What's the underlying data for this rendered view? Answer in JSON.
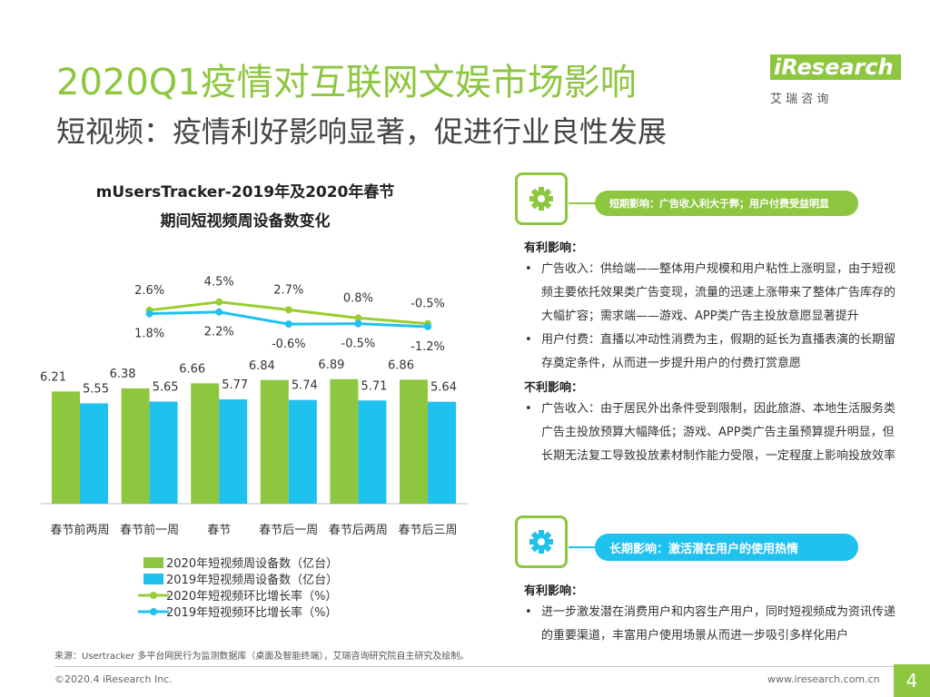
{
  "header": {
    "title": "2020Q1疫情对互联网文娱市场影响",
    "subtitle": "短视频：疫情利好影响显著，促进行业良性发展"
  },
  "logo": {
    "name": "iResearch",
    "tagline": "艾 瑞 咨 询"
  },
  "chart_data": {
    "type": "bar",
    "title": [
      "mUsersTracker-2019年及2020年春节",
      "期间短视频周设备数变化"
    ],
    "categories": [
      "春节前两周",
      "春节前一周",
      "春节",
      "春节后一周",
      "春节后两周",
      "春节后三周"
    ],
    "ylim": [
      0,
      12
    ],
    "y2lim": [
      -42,
      8
    ],
    "series": [
      {
        "name": "2020年短视频周设备数（亿台）",
        "type": "bar",
        "color": "#8dc63f",
        "values": [
          6.21,
          6.38,
          6.66,
          6.84,
          6.89,
          6.86
        ]
      },
      {
        "name": "2019年短视频周设备数（亿台）",
        "type": "bar",
        "color": "#1fc1ef",
        "values": [
          5.55,
          5.65,
          5.77,
          5.74,
          5.71,
          5.64
        ]
      },
      {
        "name": "2020年短视频环比增长率（%）",
        "type": "line",
        "axis": "y2",
        "color": "#9acd32",
        "values": [
          null,
          2.6,
          4.5,
          2.7,
          0.8,
          -0.5
        ],
        "value_labels": [
          null,
          "2.6%",
          "4.5%",
          "2.7%",
          "0.8%",
          "-0.5%"
        ]
      },
      {
        "name": "2019年短视频环比增长率（%）",
        "type": "line",
        "axis": "y2",
        "color": "#1fc1ef",
        "values": [
          null,
          1.8,
          2.2,
          -0.6,
          -0.5,
          -1.2
        ],
        "value_labels": [
          null,
          "1.8%",
          "2.2%",
          "-0.6%",
          "-0.5%",
          "-1.2%"
        ]
      }
    ]
  },
  "panels": [
    {
      "heading": "短期影响：广告收入利大于弊；用户付费受益明显",
      "sections": [
        {
          "title": "有利影响：",
          "items": [
            "广告收入：供给端——整体用户规模和用户粘性上涨明显，由于短视频主要依托效果类广告变现，流量的迅速上涨带来了整体广告库存的大幅扩容；需求端——游戏、APP类广告主投放意愿显著提升",
            "用户付费：直播以冲动性消费为主，假期的延长为直播表演的长期留存奠定条件，从而进一步提升用户的付费打赏意愿"
          ]
        },
        {
          "title": "不利影响：",
          "items": [
            "广告收入：由于居民外出条件受到限制，因此旅游、本地生活服务类广告主投放预算大幅降低；游戏、APP类广告主虽预算提升明显，但长期无法复工导致投放素材制作能力受限，一定程度上影响投放效率"
          ]
        }
      ]
    },
    {
      "heading": "长期影响：激活潜在用户的使用热情",
      "sections": [
        {
          "title": "有利影响：",
          "items": [
            "进一步激发潜在消费用户和内容生产用户，同时短视频成为资讯传递的重要渠道，丰富用户使用场景从而进一步吸引多样化用户"
          ]
        }
      ]
    }
  ],
  "source": "来源：Usertracker 多平台网民行为监测数据库（桌面及智能终端），艾瑞咨询研究院自主研究及绘制。",
  "footer": {
    "copyright": "©2020.4 iResearch Inc.",
    "url": "www.iresearch.com.cn",
    "page": 4
  }
}
